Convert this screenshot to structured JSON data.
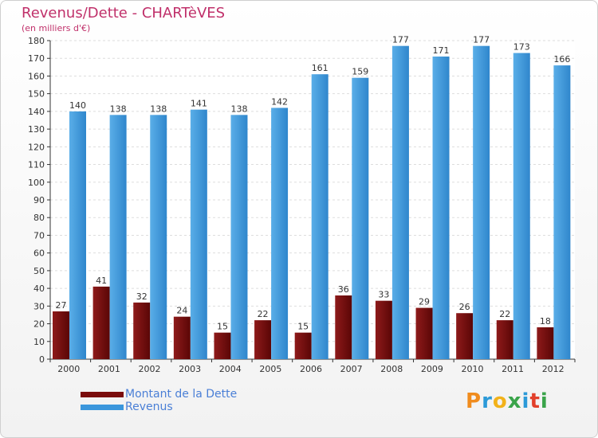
{
  "title": "Revenus/Dette - CHARTèVES",
  "subtitle": "(en milliers d'€)",
  "logo": {
    "text": "Proxiti"
  },
  "colors": {
    "dette": "#7a0d0d",
    "revenus": "#3a96dc",
    "title": "#c0306a",
    "grid": "#dddddd"
  },
  "chart_data": {
    "type": "bar",
    "title": "Revenus/Dette - CHARTèVES",
    "ylabel": "(en milliers d'€)",
    "xlabel": "",
    "ylim": [
      0,
      180
    ],
    "yticks": [
      0,
      10,
      20,
      30,
      40,
      50,
      60,
      70,
      80,
      90,
      100,
      110,
      120,
      130,
      140,
      150,
      160,
      170,
      180
    ],
    "categories": [
      "2000",
      "2001",
      "2002",
      "2003",
      "2004",
      "2005",
      "2006",
      "2007",
      "2008",
      "2009",
      "2010",
      "2011",
      "2012"
    ],
    "series": [
      {
        "name": "Montant de la Dette",
        "values": [
          27,
          41,
          32,
          24,
          15,
          22,
          15,
          36,
          33,
          29,
          26,
          22,
          18
        ]
      },
      {
        "name": "Revenus",
        "values": [
          140,
          138,
          138,
          141,
          138,
          142,
          161,
          159,
          177,
          171,
          177,
          173,
          166
        ]
      }
    ],
    "legend": "bottom-left",
    "grid": true
  }
}
